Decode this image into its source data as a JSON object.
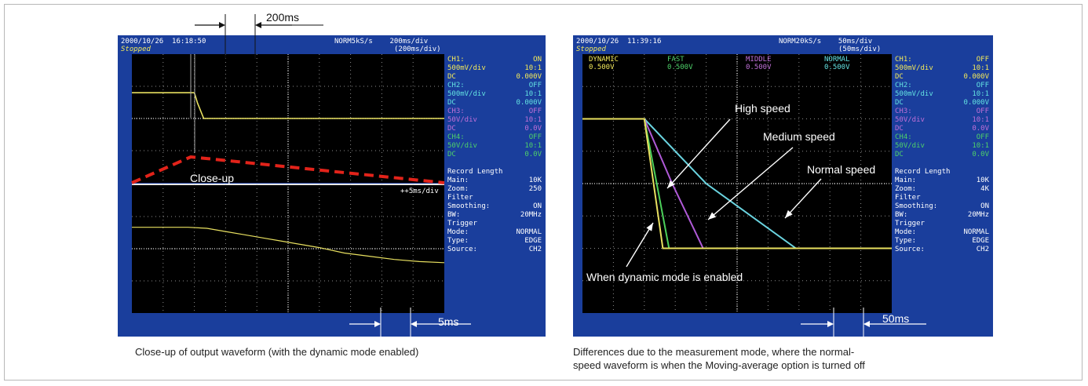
{
  "left_panel": {
    "header_left": "2000/10/26  16:18:50",
    "header_status": "Stopped",
    "header_right": "NORM5kS/s    200ms/div",
    "header_right2": "(200ms/div)",
    "timescale_top": "200ms",
    "timescale_bottom": "5ms",
    "zoom_label": "++5ms/div",
    "closeup_label": "Close-up",
    "sidebar": [
      [
        "CH1:",
        "ON"
      ],
      [
        "500mV/div",
        "10:1"
      ],
      [
        "DC",
        "0.000V"
      ],
      [
        "CH2:",
        "OFF"
      ],
      [
        "500mV/div",
        "10:1"
      ],
      [
        "DC",
        "0.000V"
      ],
      [
        "CH3:",
        "OFF"
      ],
      [
        "50V/div",
        "10:1"
      ],
      [
        "DC",
        "0.0V"
      ],
      [
        "CH4:",
        "OFF"
      ],
      [
        "50V/div",
        "10:1"
      ],
      [
        "DC",
        "0.0V"
      ],
      [
        "",
        ""
      ],
      [
        "Record Length",
        ""
      ],
      [
        "Main:",
        "10K"
      ],
      [
        "Zoom:",
        "250"
      ],
      [
        "Filter",
        ""
      ],
      [
        "Smoothing:",
        "ON"
      ],
      [
        "BW:",
        "20MHz"
      ],
      [
        "Trigger",
        ""
      ],
      [
        "Mode:",
        "NORMAL"
      ],
      [
        "Type:",
        "EDGE"
      ],
      [
        "Source:",
        "CH2"
      ]
    ],
    "caption": "Close-up of output waveform (with the dynamic mode enabled)"
  },
  "right_panel": {
    "header_left": "2000/10/26  11:39:16",
    "header_status": "Stopped",
    "header_right": "NORM20kS/s    50ms/div",
    "header_right2": "(50ms/div)",
    "timescale_bottom": "50ms",
    "sidebar": [
      [
        "CH1:",
        "OFF"
      ],
      [
        "500mV/div",
        "10:1"
      ],
      [
        "DC",
        "0.000V"
      ],
      [
        "CH2:",
        "OFF"
      ],
      [
        "500mV/div",
        "10:1"
      ],
      [
        "DC",
        "0.000V"
      ],
      [
        "CH3:",
        "OFF"
      ],
      [
        "50V/div",
        "10:1"
      ],
      [
        "DC",
        "0.0V"
      ],
      [
        "CH4:",
        "OFF"
      ],
      [
        "50V/div",
        "10:1"
      ],
      [
        "DC",
        "0.0V"
      ],
      [
        "",
        ""
      ],
      [
        "Record Length",
        ""
      ],
      [
        "Main:",
        "10K"
      ],
      [
        "Zoom:",
        "4K"
      ],
      [
        "Filter",
        ""
      ],
      [
        "Smoothing:",
        "ON"
      ],
      [
        "BW:",
        "20MHz"
      ],
      [
        "Trigger",
        ""
      ],
      [
        "Mode:",
        "NORMAL"
      ],
      [
        "Type:",
        "EDGE"
      ],
      [
        "Source:",
        "CH2"
      ]
    ],
    "caption_line1": "Differences due to the measurement mode, where the normal-",
    "caption_line2": "speed waveform is when the Moving-average option is turned off"
  },
  "colors": {
    "scope_blue": "#1a3e9c",
    "sidebar_yellow": "#f2e85a",
    "sidebar_cyan": "#62e0e0",
    "sidebar_magenta": "#c070d8",
    "sidebar_green": "#4ed06a",
    "trace_yellow": "#e8e060",
    "trace_green": "#4cd05a",
    "trace_magenta": "#b05ad8",
    "trace_cyan": "#6ad4e0",
    "closeup_red": "#e2231a"
  },
  "chart_data": [
    {
      "type": "line",
      "title": "",
      "xlabel": "",
      "ylabel": "",
      "x_unit": "ms",
      "x_scale": "200ms/div",
      "xlim": [
        0,
        2000
      ],
      "ylim": [
        -5,
        5
      ],
      "grid": true,
      "series": [
        {
          "x": [
            0,
            400,
            420,
            460,
            2000
          ],
          "values": [
            2.0,
            2.0,
            1.2,
            0.0,
            0.0
          ]
        }
      ]
    },
    {
      "type": "line",
      "title": "",
      "xlabel": "",
      "ylabel": "",
      "x_unit": "ms",
      "x_scale": "5ms/div",
      "xlim": [
        0,
        50
      ],
      "ylim": [
        -3,
        3
      ],
      "grid": true,
      "series": [
        {
          "x": [
            0,
            9,
            12,
            15,
            18,
            21,
            24,
            27,
            30,
            34,
            38,
            42,
            46,
            50
          ],
          "values": [
            1.0,
            1.0,
            0.95,
            0.8,
            0.65,
            0.5,
            0.35,
            0.2,
            0.05,
            -0.2,
            -0.35,
            -0.5,
            -0.6,
            -0.65
          ]
        }
      ]
    },
    {
      "type": "line",
      "title": "",
      "xlabel": "",
      "ylabel": "",
      "x_unit": "ms",
      "x_scale": "50ms/div",
      "xlim": [
        0,
        500
      ],
      "ylim": [
        -4,
        4
      ],
      "grid": true,
      "legend": [
        "DYNAMIC 0.500V",
        "FAST 0.500V",
        "MIDDLE 0.500V",
        "NORMAL 0.500V"
      ],
      "series": [
        {
          "name": "DYNAMIC",
          "x": [
            0,
            100,
            115,
            130,
            500
          ],
          "values": [
            2.0,
            2.0,
            0.0,
            -2.0,
            -2.0
          ]
        },
        {
          "name": "FAST",
          "x": [
            0,
            100,
            120,
            140,
            500
          ],
          "values": [
            2.0,
            2.0,
            0.0,
            -2.0,
            -2.0
          ]
        },
        {
          "name": "MIDDLE",
          "x": [
            0,
            100,
            145,
            195,
            500
          ],
          "values": [
            2.0,
            2.0,
            0.0,
            -2.0,
            -2.0
          ]
        },
        {
          "name": "NORMAL",
          "x": [
            0,
            100,
            200,
            345,
            500
          ],
          "values": [
            2.0,
            2.0,
            0.0,
            -2.0,
            -2.0
          ]
        }
      ],
      "annotations": [
        "High speed",
        "Medium speed",
        "Normal speed",
        "When dynamic mode is enabled"
      ]
    }
  ]
}
